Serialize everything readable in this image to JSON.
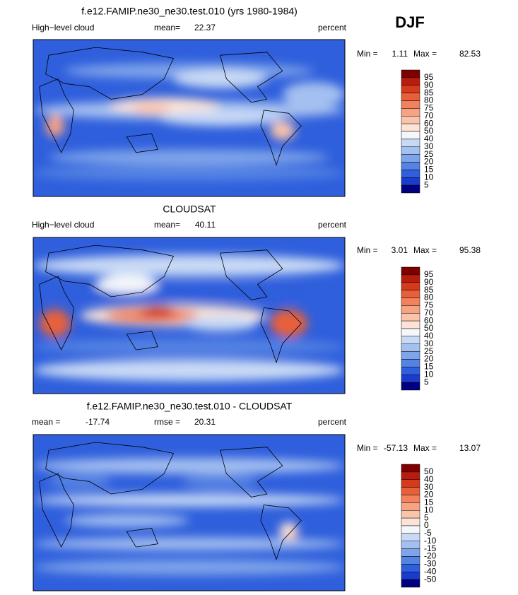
{
  "header": {
    "season": "DJF"
  },
  "panels": [
    {
      "title": "f.e12.FAMIP.ne30_ne30.test.010 (yrs 1980-1984)",
      "left_label": "High−level cloud",
      "stat1_label": "mean=",
      "stat1": 22.37,
      "unit": "percent",
      "min_label": "Min =",
      "min": 1.11,
      "max_label": "Max =",
      "max": 82.53,
      "colorbar": {
        "levels": [
          95,
          90,
          85,
          80,
          75,
          70,
          60,
          50,
          40,
          30,
          25,
          20,
          15,
          10,
          5
        ],
        "colors": [
          "#7f0000",
          "#b71c0c",
          "#d63a1c",
          "#e8603a",
          "#f2825e",
          "#f7a283",
          "#fac4ab",
          "#fde3d6",
          "#f4f6fa",
          "#c8d9f5",
          "#a4c0f0",
          "#7ea4ea",
          "#5583e3",
          "#2f5fdc",
          "#1a3ccd",
          "#000080"
        ]
      }
    },
    {
      "title": "CLOUDSAT",
      "left_label": "High−level cloud",
      "stat1_label": "mean=",
      "stat1": 40.11,
      "unit": "percent",
      "min_label": "Min =",
      "min": 3.01,
      "max_label": "Max =",
      "max": 95.38,
      "colorbar": {
        "levels": [
          95,
          90,
          85,
          80,
          75,
          70,
          60,
          50,
          40,
          30,
          25,
          20,
          15,
          10,
          5
        ],
        "colors": [
          "#7f0000",
          "#b71c0c",
          "#d63a1c",
          "#e8603a",
          "#f2825e",
          "#f7a283",
          "#fac4ab",
          "#fde3d6",
          "#f4f6fa",
          "#c8d9f5",
          "#a4c0f0",
          "#7ea4ea",
          "#5583e3",
          "#2f5fdc",
          "#1a3ccd",
          "#000080"
        ]
      }
    },
    {
      "title": "f.e12.FAMIP.ne30_ne30.test.010 - CLOUDSAT",
      "left_label": "mean =",
      "left_value": -17.74,
      "stat1_label": "rmse =",
      "stat1": 20.31,
      "unit": "percent",
      "min_label": "Min =",
      "min": -57.13,
      "max_label": "Max =",
      "max": 13.07,
      "colorbar": {
        "levels": [
          50,
          40,
          30,
          20,
          15,
          10,
          5,
          0,
          -5,
          -10,
          -15,
          -20,
          -30,
          -40,
          -50
        ],
        "colors": [
          "#7f0000",
          "#b71c0c",
          "#d63a1c",
          "#e8603a",
          "#f2825e",
          "#f7a283",
          "#fac4ab",
          "#fde3d6",
          "#f4f6fa",
          "#c8d9f5",
          "#a4c0f0",
          "#7ea4ea",
          "#5583e3",
          "#2f5fdc",
          "#1a3ccd",
          "#000080"
        ]
      }
    }
  ]
}
